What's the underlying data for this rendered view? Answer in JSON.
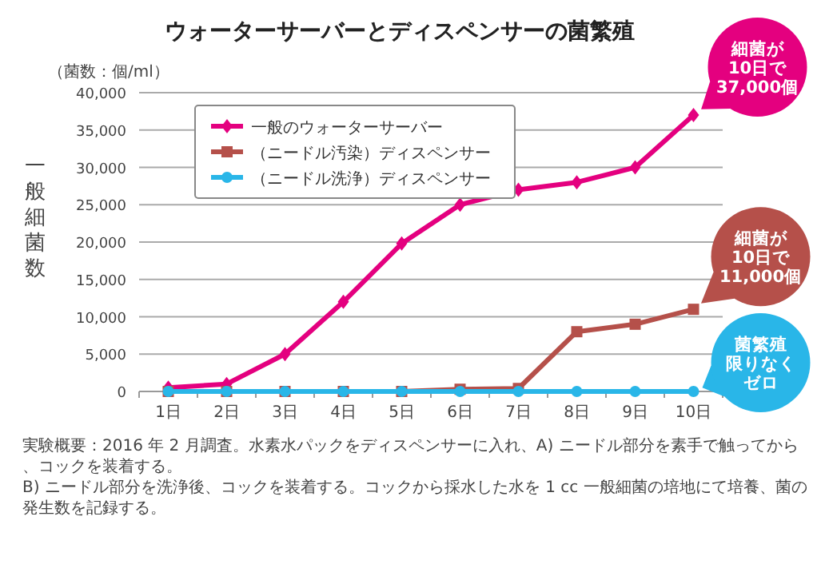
{
  "chart_data": {
    "type": "line",
    "title": "ウォーターサーバーとディスペンサーの菌繁殖",
    "subtitle": "（菌数：個/ml）",
    "ylabel": "一般細菌数",
    "categories": [
      "1日",
      "2日",
      "3日",
      "4日",
      "5日",
      "6日",
      "7日",
      "8日",
      "9日",
      "10日"
    ],
    "series": [
      {
        "name": "一般のウォーターサーバー",
        "color": "#e4007f",
        "marker": "diamond",
        "values": [
          500,
          1000,
          5000,
          12000,
          19800,
          25000,
          27000,
          28000,
          30000,
          37000
        ]
      },
      {
        "name": "（ニードル汚染）ディスペンサー",
        "color": "#b5504a",
        "marker": "square",
        "values": [
          0,
          0,
          0,
          0,
          0,
          300,
          400,
          8000,
          9000,
          11000
        ]
      },
      {
        "name": "（ニードル洗浄）ディスペンサー",
        "color": "#29b6e8",
        "marker": "circle",
        "values": [
          0,
          0,
          0,
          0,
          0,
          0,
          0,
          0,
          0,
          0
        ]
      }
    ],
    "ylim": [
      0,
      40000
    ],
    "yticks": [
      {
        "value": 0,
        "label": "0"
      },
      {
        "value": 5000,
        "label": "5,000"
      },
      {
        "value": 10000,
        "label": "10,000"
      },
      {
        "value": 15000,
        "label": "15,000"
      },
      {
        "value": 20000,
        "label": "20,000"
      },
      {
        "value": 25000,
        "label": "25,000"
      },
      {
        "value": 30000,
        "label": "30,000"
      },
      {
        "value": 35000,
        "label": "35,000"
      },
      {
        "value": 40000,
        "label": "40,000"
      }
    ],
    "grid": "y",
    "legend": "top left",
    "annotations": [
      {
        "text": "細菌が10日で37,000個",
        "x": "10日",
        "y": 37000
      },
      {
        "text": "細菌が10日で11,000個",
        "x": "10日",
        "y": 11000
      },
      {
        "text": "菌繁殖限りなくゼロ",
        "x": "10日",
        "y": 0
      },
      "実験概要：2016 年 2 月調査。水素水パックをディスペンサーに入れ、A) ニードル部分を素手で触ってから、コックを装着する。\nB) ニードル部分を洗浄後、コックを装着する。コックから採水した水を 1 cc 一般細菌の培地にて培養、菌の発生数を記録する。"
    ]
  }
}
